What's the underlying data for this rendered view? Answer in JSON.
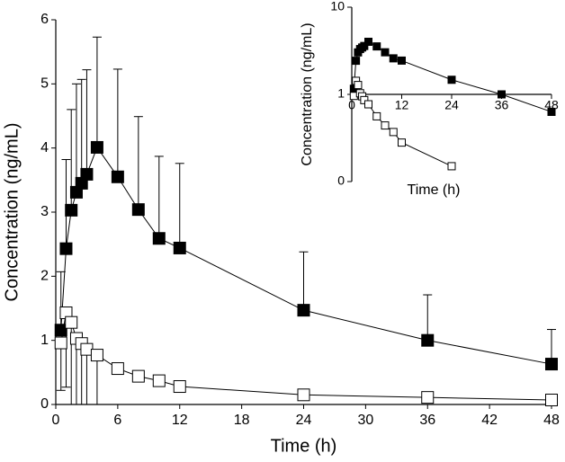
{
  "chart_data": [
    {
      "type": "line",
      "x": [
        0.5,
        1,
        1.5,
        2,
        2.5,
        3,
        4,
        6,
        8,
        10,
        12,
        24,
        36,
        48
      ],
      "xlim": [
        0,
        48
      ],
      "xticks": [
        0,
        6,
        12,
        18,
        24,
        30,
        36,
        42,
        48
      ],
      "ylim": [
        0,
        6
      ],
      "yticks": [
        0,
        1,
        2,
        3,
        4,
        5,
        6
      ],
      "x_label": "Time (h)",
      "y_label": "Concentration (ng/mL)",
      "series": [
        {
          "color": "#000000",
          "marker_fill": "#000000",
          "error_direction": "up",
          "values": [
            1.16,
            2.43,
            3.03,
            3.31,
            3.45,
            3.59,
            4.01,
            3.55,
            3.04,
            2.59,
            2.44,
            1.47,
            1.0,
            0.63
          ],
          "errors": [
            0.91,
            1.39,
            1.57,
            1.69,
            1.62,
            1.63,
            1.72,
            1.68,
            1.45,
            1.28,
            1.32,
            0.91,
            0.71,
            0.54
          ]
        },
        {
          "color": "#000000",
          "marker_fill": "#ffffff",
          "error_direction": "down",
          "values": [
            0.96,
            1.43,
            1.28,
            1.03,
            0.95,
            0.86,
            0.77,
            0.56,
            0.44,
            0.37,
            0.28,
            0.15,
            0.11,
            0.07
          ],
          "errors": [
            0.74,
            1.16,
            1.28,
            1.03,
            0.95,
            0.86,
            0.77,
            null,
            null,
            null,
            null,
            null,
            null,
            null
          ]
        }
      ]
    },
    {
      "type": "line",
      "log_y": true,
      "x_axis_crosses": 1,
      "x": [
        0.5,
        1,
        1.5,
        2,
        2.5,
        3,
        4,
        6,
        8,
        10,
        12,
        24,
        36,
        48
      ],
      "xlim": [
        0,
        48
      ],
      "xticks": [
        0,
        12,
        24,
        36,
        48
      ],
      "ylim": [
        0.1,
        10
      ],
      "yticks": [
        {
          "value": 0.1,
          "label": "0"
        },
        1,
        10
      ],
      "x_label": "Time (h)",
      "y_label": "Concentration (ng/mL)",
      "series": [
        {
          "color": "#000000",
          "marker_fill": "#000000",
          "values": [
            1.16,
            2.43,
            3.03,
            3.31,
            3.45,
            3.59,
            4.01,
            3.55,
            3.04,
            2.59,
            2.44,
            1.47,
            1.0,
            0.63
          ]
        },
        {
          "color": "#000000",
          "marker_fill": "#ffffff",
          "values": [
            0.96,
            1.43,
            1.28,
            1.03,
            0.95,
            0.86,
            0.77,
            0.56,
            0.44,
            0.37,
            0.28,
            0.15,
            null,
            null
          ]
        }
      ]
    }
  ]
}
